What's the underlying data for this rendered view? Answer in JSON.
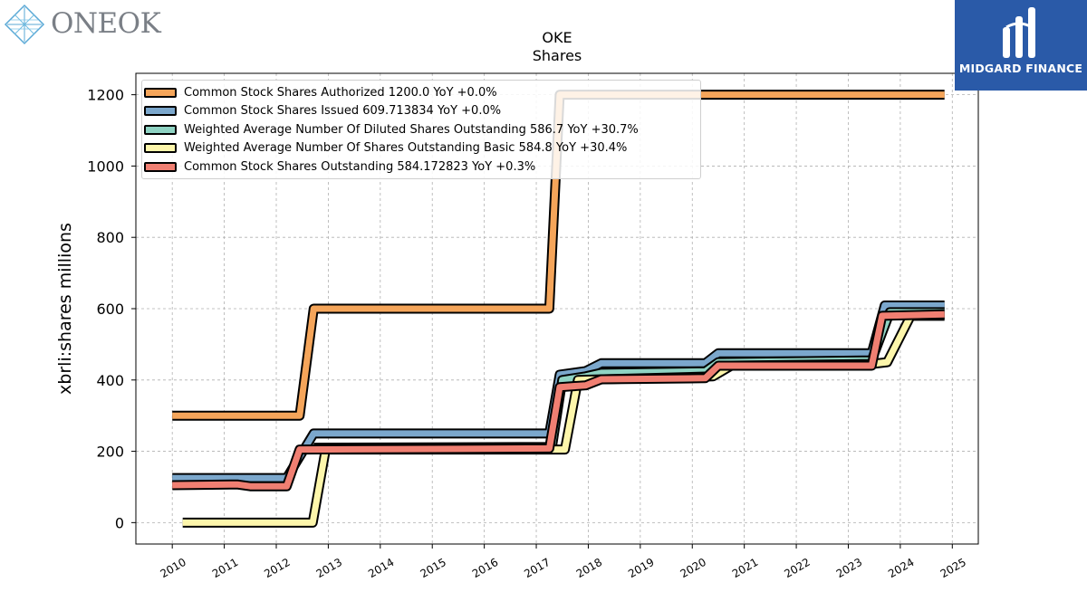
{
  "header": {
    "company_name": "ONEOK",
    "brand_name": "MIDGARD FINANCE"
  },
  "colors": {
    "brand_blue": "#2a5aa8",
    "grid": "#b0b0b0"
  },
  "chart_data": {
    "type": "line",
    "title": "OKE",
    "subtitle": "Shares",
    "xlabel": "",
    "ylabel": "xbrli:shares millions",
    "xlim": [
      2009.3,
      2025.5
    ],
    "ylim": [
      -60,
      1260
    ],
    "xticks": [
      "2010",
      "2011",
      "2012",
      "2013",
      "2014",
      "2015",
      "2016",
      "2017",
      "2018",
      "2019",
      "2020",
      "2021",
      "2022",
      "2023",
      "2024",
      "2025"
    ],
    "yticks": [
      "0",
      "200",
      "400",
      "600",
      "800",
      "1000",
      "1200"
    ],
    "grid": true,
    "legend_position": "top-left",
    "series": [
      {
        "name": "Common Stock Shares Authorized",
        "legend_label": "Common Stock Shares Authorized  1200.0 YoY +0.0%",
        "color": "#f5a55a",
        "points": [
          [
            2010.0,
            300
          ],
          [
            2012.45,
            300
          ],
          [
            2012.72,
            600
          ],
          [
            2017.25,
            600
          ],
          [
            2017.45,
            1200
          ],
          [
            2024.85,
            1200
          ]
        ]
      },
      {
        "name": "Common Stock Shares Issued",
        "legend_label": "Common Stock Shares Issued  609.713834 YoY +0.0%",
        "color": "#7ba7cc",
        "points": [
          [
            2010.0,
            125
          ],
          [
            2011.25,
            125
          ],
          [
            2011.95,
            125
          ],
          [
            2012.2,
            125
          ],
          [
            2012.72,
            250
          ],
          [
            2017.25,
            250
          ],
          [
            2017.45,
            415
          ],
          [
            2017.95,
            425
          ],
          [
            2018.25,
            447
          ],
          [
            2020.25,
            447
          ],
          [
            2020.5,
            475
          ],
          [
            2023.45,
            475
          ],
          [
            2023.7,
            609
          ],
          [
            2024.85,
            609
          ]
        ]
      },
      {
        "name": "Weighted Average Number Of Diluted Shares Outstanding",
        "legend_label": "Weighted Average Number Of Diluted Shares Outstanding  586.7 YoY +30.7%",
        "color": "#8fd3c3",
        "points": [
          [
            2012.72,
            210
          ],
          [
            2017.3,
            212
          ],
          [
            2017.5,
            400
          ],
          [
            2017.95,
            410
          ],
          [
            2018.25,
            420
          ],
          [
            2020.25,
            424
          ],
          [
            2020.5,
            450
          ],
          [
            2023.45,
            455
          ],
          [
            2023.8,
            590
          ],
          [
            2024.85,
            590
          ]
        ]
      },
      {
        "name": "Weighted Average Number Of Shares Outstanding Basic",
        "legend_label": "Weighted Average Number Of Shares Outstanding Basic  584.8 YoY +30.4%",
        "color": "#fdf6ab",
        "points": [
          [
            2010.2,
            0
          ],
          [
            2012.55,
            0
          ],
          [
            2012.7,
            0
          ],
          [
            2012.95,
            205
          ],
          [
            2017.4,
            205
          ],
          [
            2017.55,
            205
          ],
          [
            2017.8,
            400
          ],
          [
            2020.4,
            410
          ],
          [
            2020.75,
            440
          ],
          [
            2023.45,
            445
          ],
          [
            2023.75,
            450
          ],
          [
            2024.2,
            580
          ],
          [
            2024.85,
            580
          ]
        ]
      },
      {
        "name": "Common Stock Shares Outstanding",
        "legend_label": "Common Stock Shares Outstanding  584.172823 YoY +0.3%",
        "color": "#f07f72",
        "points": [
          [
            2010.0,
            105
          ],
          [
            2011.25,
            107
          ],
          [
            2011.5,
            102
          ],
          [
            2011.95,
            102
          ],
          [
            2012.2,
            102
          ],
          [
            2012.45,
            205
          ],
          [
            2017.25,
            208
          ],
          [
            2017.45,
            380
          ],
          [
            2017.95,
            385
          ],
          [
            2018.25,
            402
          ],
          [
            2020.25,
            405
          ],
          [
            2020.5,
            440
          ],
          [
            2023.45,
            440
          ],
          [
            2023.65,
            580
          ],
          [
            2024.85,
            584
          ]
        ]
      }
    ]
  }
}
